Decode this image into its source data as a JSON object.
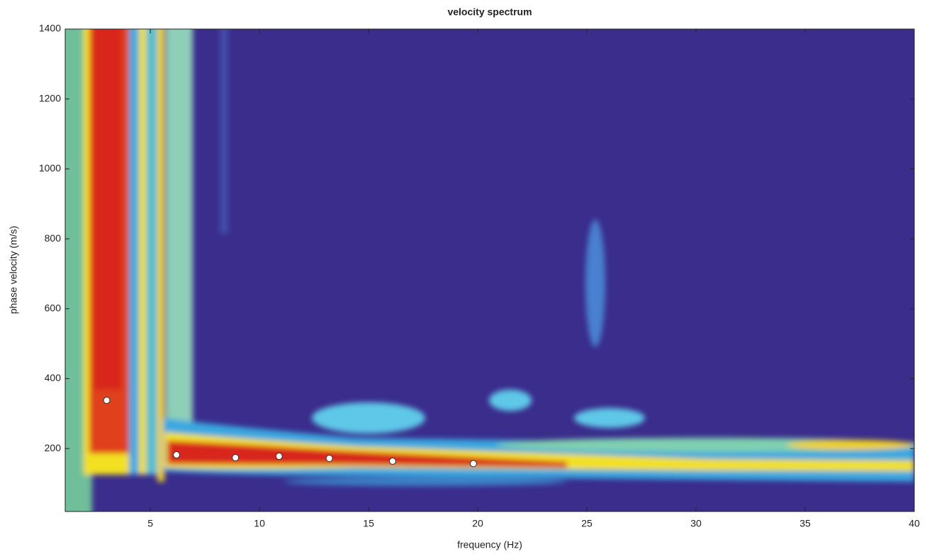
{
  "chart_data": {
    "type": "scatter",
    "title": "velocity spectrum",
    "x_label": "frequency (Hz)",
    "y_label": "phase velocity (m/s)",
    "x": [
      3.0,
      6.2,
      8.9,
      10.9,
      13.2,
      16.1,
      19.8
    ],
    "y": [
      338,
      182,
      174,
      178,
      172,
      164,
      157
    ],
    "color": "#ffffff",
    "xlim": [
      1.1,
      40
    ],
    "ylim": [
      20,
      1400
    ],
    "xticks": [
      5,
      10,
      15,
      20,
      25,
      30,
      35,
      40
    ],
    "yticks": [
      200,
      400,
      600,
      800,
      1000,
      1200,
      1400
    ]
  }
}
